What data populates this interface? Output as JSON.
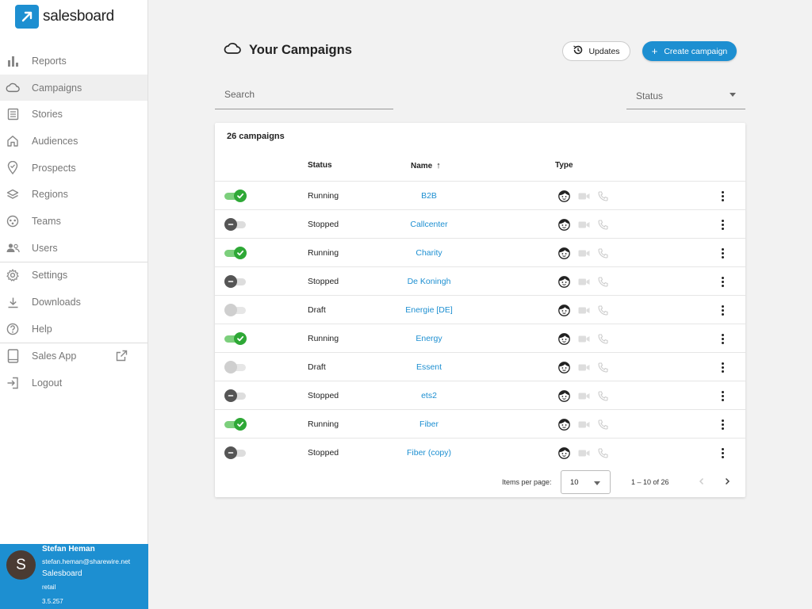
{
  "brand": {
    "name": "salesboard",
    "color": "#1d8fd1"
  },
  "sidebar": {
    "items": [
      {
        "label": "Reports",
        "icon": "bar-chart-icon"
      },
      {
        "label": "Campaigns",
        "icon": "cloud-icon",
        "active": true
      },
      {
        "label": "Stories",
        "icon": "list-icon"
      },
      {
        "label": "Audiences",
        "icon": "home-icon"
      },
      {
        "label": "Prospects",
        "icon": "location-pin-icon"
      },
      {
        "label": "Regions",
        "icon": "layers-icon"
      },
      {
        "label": "Teams",
        "icon": "group-circle-icon"
      },
      {
        "label": "Users",
        "icon": "people-icon"
      },
      {
        "label": "Settings",
        "icon": "gear-icon"
      },
      {
        "label": "Downloads",
        "icon": "download-icon"
      },
      {
        "label": "Help",
        "icon": "help-icon"
      },
      {
        "label": "Sales App",
        "icon": "tablet-icon"
      },
      {
        "label": "Logout",
        "icon": "logout-icon"
      }
    ]
  },
  "user": {
    "initial": "S",
    "name": "Stefan Heman",
    "email": "stefan.heman@sharewire.net",
    "company": "Salesboard",
    "role": "retail",
    "version": "3.5.257"
  },
  "header": {
    "title": "Your Campaigns",
    "updates_label": "Updates",
    "create_label": "Create campaign",
    "create_plus": "+"
  },
  "filters": {
    "search_placeholder": "Search",
    "status_label": "Status"
  },
  "table": {
    "title": "26 campaigns",
    "columns": {
      "status": "Status",
      "name": "Name",
      "name_sort": "↑",
      "type": "Type"
    },
    "rows": [
      {
        "state": "on",
        "status": "Running",
        "name": "B2B"
      },
      {
        "state": "stopped",
        "status": "Stopped",
        "name": "Callcenter"
      },
      {
        "state": "on",
        "status": "Running",
        "name": "Charity"
      },
      {
        "state": "stopped",
        "status": "Stopped",
        "name": "De Koningh"
      },
      {
        "state": "draft",
        "status": "Draft",
        "name": "Energie [DE]"
      },
      {
        "state": "on",
        "status": "Running",
        "name": "Energy"
      },
      {
        "state": "draft",
        "status": "Draft",
        "name": "Essent"
      },
      {
        "state": "stopped",
        "status": "Stopped",
        "name": "ets2"
      },
      {
        "state": "on",
        "status": "Running",
        "name": "Fiber"
      },
      {
        "state": "stopped",
        "status": "Stopped",
        "name": "Fiber (copy)"
      }
    ]
  },
  "pagination": {
    "items_per_page_label": "Items per page:",
    "page_size": "10",
    "range": "1 – 10 of 26"
  }
}
